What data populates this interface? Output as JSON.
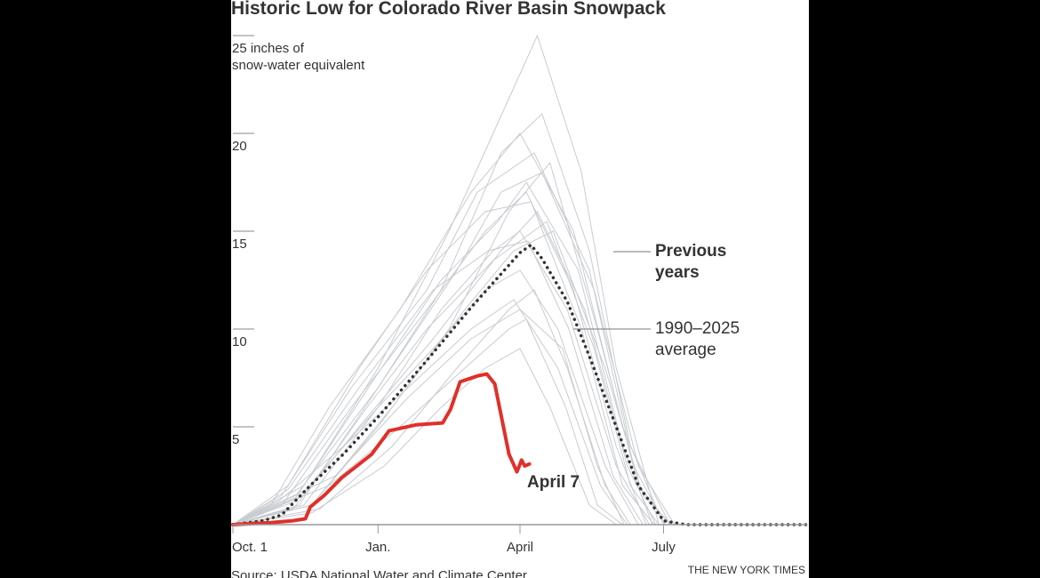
{
  "chart_data": {
    "type": "line",
    "title": "Historic Low for Colorado River Basin Snowpack",
    "ylabel_line1": "25 inches of",
    "ylabel_line2": "snow-water equivalent",
    "ylim": [
      0,
      25
    ],
    "yticks": [
      5,
      10,
      15,
      20,
      25
    ],
    "ytick_labels": [
      "5",
      "10",
      "15",
      "20",
      ""
    ],
    "xrange": [
      "10-01",
      "09-30"
    ],
    "xticks": [
      {
        "date": "10-01",
        "label": "Oct. 1"
      },
      {
        "date": "01-01",
        "label": "Jan."
      },
      {
        "date": "04-01",
        "label": "April"
      },
      {
        "date": "07-01",
        "label": "July"
      }
    ],
    "grid": false,
    "colors": {
      "previous": "#c8ccd0",
      "average": "#333333",
      "current": "#e0302a"
    },
    "annotations": {
      "previous_line1": "Previous",
      "previous_line2": "years",
      "average_line1": "1990–2025",
      "average_line2": "average",
      "current": "April 7"
    },
    "source": "Source: USDA National Water and Climate Center",
    "credit": "THE NEW YORK TIMES",
    "average": [
      [
        "10-01",
        0
      ],
      [
        "10-20",
        0.2
      ],
      [
        "11-01",
        0.5
      ],
      [
        "11-19",
        2
      ],
      [
        "12-10",
        3.6
      ],
      [
        "01-01",
        5.5
      ],
      [
        "02-01",
        8.4
      ],
      [
        "03-01",
        11.1
      ],
      [
        "04-01",
        13.9
      ],
      [
        "04-08",
        14.3
      ],
      [
        "04-15",
        13.6
      ],
      [
        "05-01",
        11.4
      ],
      [
        "05-15",
        8.6
      ],
      [
        "06-01",
        5
      ],
      [
        "06-15",
        2
      ],
      [
        "07-01",
        0.2
      ],
      [
        "07-15",
        0
      ],
      [
        "09-30",
        0
      ]
    ],
    "current": [
      [
        "10-01",
        0
      ],
      [
        "10-25",
        0.1
      ],
      [
        "11-08",
        0.2
      ],
      [
        "11-16",
        0.3
      ],
      [
        "11-19",
        0.9
      ],
      [
        "11-28",
        1.5
      ],
      [
        "12-09",
        2.4
      ],
      [
        "12-17",
        2.9
      ],
      [
        "12-28",
        3.6
      ],
      [
        "01-08",
        4.8
      ],
      [
        "01-25",
        5.1
      ],
      [
        "02-11",
        5.2
      ],
      [
        "02-16",
        5.9
      ],
      [
        "02-22",
        7.3
      ],
      [
        "03-05",
        7.6
      ],
      [
        "03-11",
        7.7
      ],
      [
        "03-16",
        7.2
      ],
      [
        "03-25",
        3.6
      ],
      [
        "03-30",
        2.7
      ],
      [
        "04-02",
        3.3
      ],
      [
        "04-04",
        3.0
      ],
      [
        "04-07",
        3.1
      ]
    ],
    "previous_years": [
      [
        [
          "10-01",
          0
        ],
        [
          "11-15",
          2
        ],
        [
          "01-01",
          8
        ],
        [
          "02-15",
          15
        ],
        [
          "03-15",
          20
        ],
        [
          "04-12",
          25
        ],
        [
          "05-10",
          18
        ],
        [
          "06-01",
          8
        ],
        [
          "06-28",
          0
        ]
      ],
      [
        [
          "10-01",
          0
        ],
        [
          "11-10",
          1.5
        ],
        [
          "01-01",
          7
        ],
        [
          "02-10",
          12
        ],
        [
          "03-20",
          19
        ],
        [
          "04-15",
          21
        ],
        [
          "05-15",
          14
        ],
        [
          "06-10",
          4
        ],
        [
          "07-05",
          0
        ]
      ],
      [
        [
          "10-01",
          0
        ],
        [
          "11-20",
          1
        ],
        [
          "01-01",
          5
        ],
        [
          "02-15",
          10
        ],
        [
          "03-25",
          16
        ],
        [
          "04-20",
          18.5
        ],
        [
          "05-20",
          10
        ],
        [
          "06-15",
          2
        ],
        [
          "07-05",
          0
        ]
      ],
      [
        [
          "10-01",
          0
        ],
        [
          "11-01",
          1
        ],
        [
          "12-15",
          6
        ],
        [
          "02-01",
          11
        ],
        [
          "03-10",
          15
        ],
        [
          "04-05",
          17
        ],
        [
          "05-05",
          12
        ],
        [
          "06-01",
          4
        ],
        [
          "06-20",
          0
        ]
      ],
      [
        [
          "10-01",
          0
        ],
        [
          "11-25",
          0.8
        ],
        [
          "01-10",
          4
        ],
        [
          "02-20",
          8
        ],
        [
          "03-25",
          11
        ],
        [
          "04-10",
          12
        ],
        [
          "05-01",
          8
        ],
        [
          "05-25",
          2
        ],
        [
          "06-10",
          0
        ]
      ],
      [
        [
          "10-01",
          0
        ],
        [
          "11-05",
          2
        ],
        [
          "12-20",
          8
        ],
        [
          "02-01",
          13
        ],
        [
          "03-10",
          16
        ],
        [
          "04-08",
          16.5
        ],
        [
          "05-10",
          10
        ],
        [
          "06-05",
          2
        ],
        [
          "06-25",
          0
        ]
      ],
      [
        [
          "10-01",
          0
        ],
        [
          "11-15",
          1
        ],
        [
          "01-01",
          6
        ],
        [
          "02-10",
          11
        ],
        [
          "03-15",
          14
        ],
        [
          "04-01",
          15
        ],
        [
          "05-01",
          11
        ],
        [
          "06-01",
          3
        ],
        [
          "06-22",
          0
        ]
      ],
      [
        [
          "10-01",
          0
        ],
        [
          "12-01",
          2
        ],
        [
          "01-15",
          5
        ],
        [
          "02-25",
          8
        ],
        [
          "03-25",
          10
        ],
        [
          "04-05",
          10.5
        ],
        [
          "04-30",
          6
        ],
        [
          "05-20",
          1
        ],
        [
          "06-05",
          0
        ]
      ],
      [
        [
          "10-01",
          0
        ],
        [
          "10-25",
          1
        ],
        [
          "12-01",
          6
        ],
        [
          "01-15",
          11
        ],
        [
          "03-01",
          17
        ],
        [
          "04-01",
          20
        ],
        [
          "05-05",
          15
        ],
        [
          "06-05",
          5
        ],
        [
          "07-01",
          0
        ]
      ],
      [
        [
          "10-01",
          0
        ],
        [
          "11-10",
          1.2
        ],
        [
          "01-01",
          6
        ],
        [
          "02-05",
          9
        ],
        [
          "03-10",
          12
        ],
        [
          "04-01",
          13
        ],
        [
          "04-25",
          10
        ],
        [
          "05-25",
          3
        ],
        [
          "06-15",
          0
        ]
      ],
      [
        [
          "10-01",
          0
        ],
        [
          "11-20",
          0.6
        ],
        [
          "01-05",
          3
        ],
        [
          "02-10",
          6
        ],
        [
          "03-10",
          8
        ],
        [
          "04-01",
          9
        ],
        [
          "04-20",
          6
        ],
        [
          "05-15",
          1
        ],
        [
          "06-01",
          0
        ]
      ],
      [
        [
          "10-01",
          0
        ],
        [
          "11-01",
          1.5
        ],
        [
          "12-15",
          7
        ],
        [
          "02-01",
          12
        ],
        [
          "03-05",
          17
        ],
        [
          "04-10",
          19
        ],
        [
          "05-15",
          13
        ],
        [
          "06-12",
          3
        ],
        [
          "07-02",
          0
        ]
      ],
      [
        [
          "10-01",
          0
        ],
        [
          "11-15",
          1.5
        ],
        [
          "12-25",
          6
        ],
        [
          "02-01",
          10
        ],
        [
          "03-15",
          13.5
        ],
        [
          "04-18",
          15.5
        ],
        [
          "05-18",
          9
        ],
        [
          "06-10",
          2
        ],
        [
          "06-28",
          0
        ]
      ],
      [
        [
          "10-01",
          0
        ],
        [
          "11-08",
          0.8
        ],
        [
          "12-20",
          5
        ],
        [
          "02-05",
          9.5
        ],
        [
          "03-20",
          14
        ],
        [
          "04-12",
          16
        ],
        [
          "05-12",
          11
        ],
        [
          "06-08",
          3
        ],
        [
          "06-26",
          0
        ]
      ],
      [
        [
          "10-01",
          0
        ],
        [
          "11-12",
          1
        ],
        [
          "01-01",
          7
        ],
        [
          "02-20",
          13
        ],
        [
          "03-20",
          17
        ],
        [
          "04-15",
          18
        ],
        [
          "05-18",
          12
        ],
        [
          "06-15",
          3
        ],
        [
          "07-08",
          0
        ]
      ],
      [
        [
          "10-01",
          0
        ],
        [
          "10-30",
          1.2
        ],
        [
          "12-10",
          4
        ],
        [
          "01-20",
          7
        ],
        [
          "03-01",
          10
        ],
        [
          "03-28",
          11.5
        ],
        [
          "04-25",
          8
        ],
        [
          "05-22",
          2
        ],
        [
          "06-08",
          0
        ]
      ],
      [
        [
          "10-01",
          0
        ],
        [
          "11-10",
          1.4
        ],
        [
          "12-30",
          7.5
        ],
        [
          "02-10",
          12.5
        ],
        [
          "03-18",
          15.5
        ],
        [
          "04-05",
          17.5
        ],
        [
          "05-08",
          13
        ],
        [
          "06-05",
          4
        ],
        [
          "06-24",
          0
        ]
      ],
      [
        [
          "10-01",
          0
        ],
        [
          "11-20",
          1
        ],
        [
          "01-10",
          6
        ],
        [
          "02-25",
          11
        ],
        [
          "03-28",
          14
        ],
        [
          "04-22",
          15
        ],
        [
          "05-25",
          8
        ],
        [
          "06-18",
          1.5
        ],
        [
          "07-06",
          0
        ]
      ],
      [
        [
          "10-01",
          0
        ],
        [
          "12-05",
          2.5
        ],
        [
          "01-20",
          6.5
        ],
        [
          "03-01",
          9.5
        ],
        [
          "04-01",
          11
        ],
        [
          "04-28",
          9
        ],
        [
          "05-20",
          3
        ],
        [
          "06-06",
          0
        ]
      ],
      [
        [
          "10-01",
          0
        ],
        [
          "11-05",
          1.8
        ],
        [
          "12-20",
          7
        ],
        [
          "02-05",
          12
        ],
        [
          "03-12",
          14
        ],
        [
          "04-06",
          14.5
        ],
        [
          "05-02",
          10
        ],
        [
          "05-30",
          2.5
        ],
        [
          "06-18",
          0
        ]
      ]
    ]
  }
}
